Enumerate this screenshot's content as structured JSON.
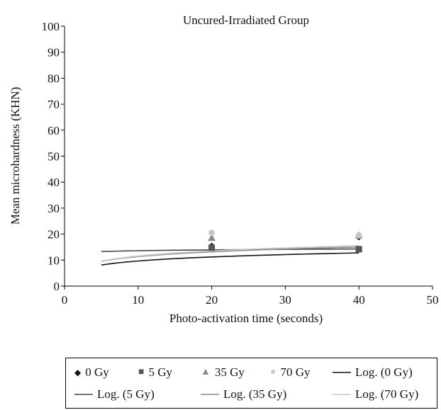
{
  "chart_data": {
    "type": "scatter",
    "title": "Uncured-Irradiated Group",
    "xlabel": "Photo-activation time (seconds)",
    "ylabel": "Mean microhardness (KHN)",
    "xlim": [
      0,
      50
    ],
    "ylim": [
      0,
      100
    ],
    "xticks": [
      0,
      10,
      20,
      30,
      40,
      50
    ],
    "yticks": [
      0,
      10,
      20,
      30,
      40,
      50,
      60,
      70,
      80,
      90,
      100
    ],
    "grid": false,
    "legend_position": "bottom",
    "series": [
      {
        "name": "0 Gy",
        "marker": "diamond",
        "color": "#111111",
        "x": [
          20,
          40
        ],
        "y": [
          15.5,
          18.8
        ]
      },
      {
        "name": "5 Gy",
        "marker": "square",
        "color": "#555555",
        "x": [
          20,
          40
        ],
        "y": [
          14.8,
          14.2
        ]
      },
      {
        "name": "35 Gy",
        "marker": "triangle",
        "color": "#888888",
        "x": [
          20,
          40
        ],
        "y": [
          18.5,
          19.6
        ]
      },
      {
        "name": "70 Gy",
        "marker": "circle",
        "color": "#c8c8c8",
        "x": [
          20,
          40
        ],
        "y": [
          20.5,
          19.5
        ]
      }
    ],
    "trendlines": [
      {
        "name": "Log. (0 Gy)",
        "color": "#111111",
        "x_start": 5,
        "x_end": 40,
        "a": 4.47,
        "b": 2.25
      },
      {
        "name": "Log. (5 Gy)",
        "color": "#444444",
        "x_start": 5,
        "x_end": 40,
        "a": 12.5,
        "b": 0.48
      },
      {
        "name": "Log. (35 Gy)",
        "color": "#888888",
        "x_start": 5,
        "x_end": 40,
        "a": 5.25,
        "b": 2.65
      },
      {
        "name": "Log. (70 Gy)",
        "color": "#c8c8c8",
        "x_start": 5,
        "x_end": 40,
        "a": 5.0,
        "b": 2.85
      }
    ]
  },
  "legend": [
    {
      "label": "0 Gy",
      "symbol": "◆"
    },
    {
      "label": "5 Gy",
      "symbol": "■"
    },
    {
      "label": "35 Gy",
      "symbol": "▲"
    },
    {
      "label": "70 Gy",
      "symbol": "●"
    },
    {
      "label": "Log. (0 Gy)",
      "symbol": "line"
    },
    {
      "label": "Log. (5 Gy)",
      "symbol": "line"
    },
    {
      "label": "Log. (35 Gy)",
      "symbol": "line"
    },
    {
      "label": "Log. (70 Gy)",
      "symbol": "line"
    }
  ]
}
